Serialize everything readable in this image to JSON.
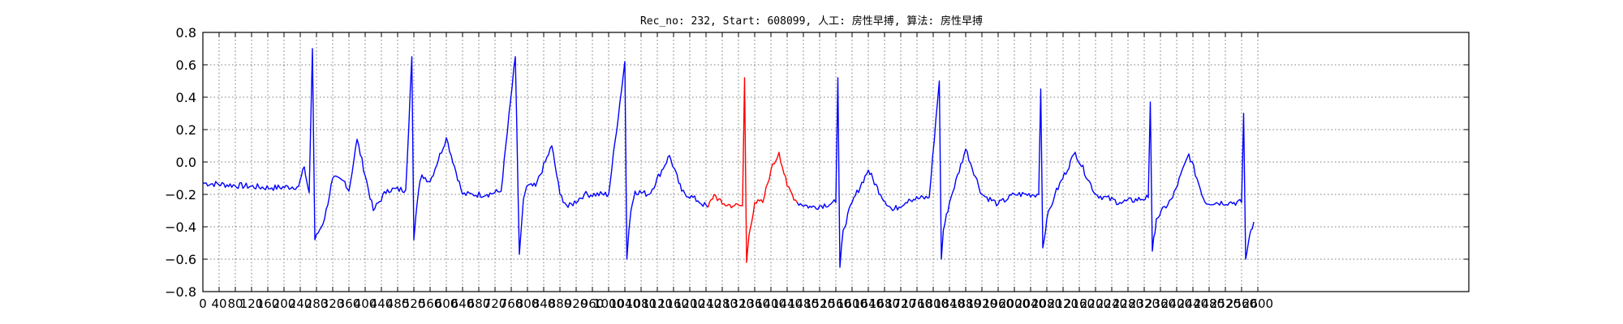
{
  "chart_data": {
    "type": "line",
    "title": "Rec_no: 232, Start: 608099, 人工: 房性早搏, 算法: 房性早搏",
    "xlabel": "",
    "ylabel": "",
    "xlim": [
      0,
      3120
    ],
    "ylim": [
      -0.8,
      0.8
    ],
    "grid": true,
    "yticks": [
      -0.8,
      -0.6,
      -0.4,
      -0.2,
      0.0,
      0.2,
      0.4,
      0.6,
      0.8
    ],
    "ytick_labels": [
      "−0.8",
      "−0.6",
      "−0.4",
      "−0.2",
      "0.0",
      "0.2",
      "0.4",
      "0.6",
      "0.8"
    ],
    "xticks": [
      0,
      40,
      80,
      120,
      160,
      200,
      240,
      280,
      320,
      360,
      400,
      440,
      480,
      520,
      560,
      600,
      640,
      680,
      720,
      760,
      800,
      840,
      880,
      920,
      960,
      1000,
      1040,
      1080,
      1120,
      1160,
      1200,
      1240,
      1280,
      1320,
      1360,
      1400,
      1440,
      1480,
      1520,
      1560,
      1600,
      1640,
      1680,
      1720,
      1760,
      1800,
      1840,
      1880,
      1920,
      1960,
      2000,
      2040,
      2080,
      2120,
      2160,
      2200,
      2240,
      2280,
      2320,
      2360,
      2400,
      2440,
      2480,
      2520,
      2560,
      2600
    ],
    "colors": {
      "normal": "#0000ff",
      "highlight": "#ff0000"
    },
    "series": [
      {
        "color": "#0000ff",
        "x": [
          0,
          170,
          236,
          250,
          256,
          262,
          270,
          276,
          300,
          320,
          350,
          360,
          380,
          420,
          455,
          500,
          515,
          520,
          525,
          535,
          540,
          560,
          600,
          640,
          665,
          700,
          735,
          770,
          780,
          785,
          790,
          798,
          820,
          860,
          880,
          900,
          940,
          1000,
          1040,
          1045,
          1050,
          1055,
          1065,
          1100,
          1150,
          1180,
          1220,
          1245
        ],
        "y": [
          -0.13,
          -0.16,
          -0.15,
          -0.03,
          -0.12,
          -0.19,
          0.7,
          -0.48,
          -0.35,
          -0.1,
          -0.12,
          -0.18,
          0.14,
          -0.3,
          -0.17,
          -0.17,
          0.65,
          -0.48,
          -0.33,
          -0.12,
          -0.08,
          -0.12,
          0.15,
          -0.2,
          -0.2,
          -0.2,
          -0.18,
          0.65,
          -0.57,
          -0.4,
          -0.23,
          -0.15,
          -0.15,
          0.1,
          -0.2,
          -0.28,
          -0.2,
          -0.2,
          0.62,
          -0.6,
          -0.42,
          -0.3,
          -0.18,
          -0.2,
          0.04,
          -0.18,
          -0.24,
          -0.28
        ]
      },
      {
        "color": "#ff0000",
        "x": [
          1245,
          1260,
          1280,
          1310,
          1330,
          1335,
          1340,
          1346,
          1360,
          1380,
          1400,
          1420,
          1440,
          1465
        ],
        "y": [
          -0.28,
          -0.2,
          -0.26,
          -0.27,
          -0.27,
          0.52,
          -0.62,
          -0.45,
          -0.25,
          -0.25,
          -0.05,
          0.06,
          -0.15,
          -0.25
        ]
      },
      {
        "color": "#0000ff",
        "x": [
          1465,
          1500,
          1560,
          1565,
          1570,
          1578,
          1600,
          1640,
          1670,
          1700,
          1740,
          1790,
          1815,
          1820,
          1825,
          1840,
          1880,
          1920,
          1960,
          2000,
          2060,
          2065,
          2070,
          2080,
          2100,
          2150,
          2200,
          2260,
          2330,
          2335,
          2340,
          2350,
          2390,
          2430,
          2470,
          2530,
          2560,
          2565,
          2570,
          2580,
          2590
        ],
        "y": [
          -0.25,
          -0.28,
          -0.25,
          0.52,
          -0.65,
          -0.42,
          -0.25,
          -0.05,
          -0.2,
          -0.3,
          -0.23,
          -0.22,
          0.5,
          -0.6,
          -0.42,
          -0.25,
          0.08,
          -0.2,
          -0.26,
          -0.2,
          -0.2,
          0.45,
          -0.53,
          -0.35,
          -0.2,
          0.06,
          -0.2,
          -0.25,
          -0.22,
          0.37,
          -0.55,
          -0.35,
          -0.22,
          0.05,
          -0.25,
          -0.25,
          -0.25,
          0.3,
          -0.6,
          -0.45,
          -0.37
        ]
      }
    ]
  }
}
